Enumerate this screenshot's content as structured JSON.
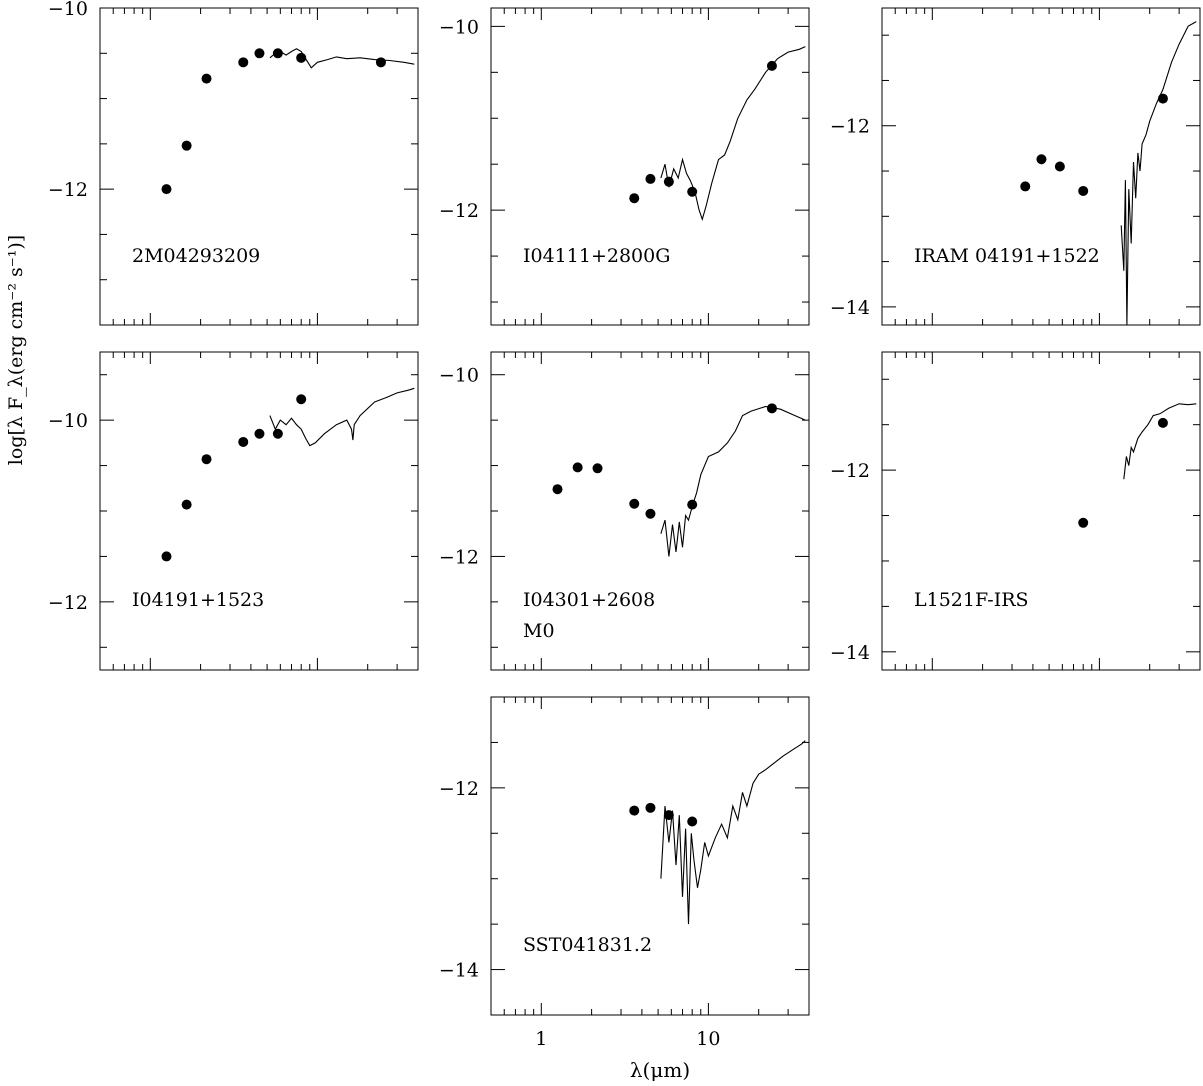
{
  "figure": {
    "ylabel": "log[λ F_λ(erg cm⁻² s⁻¹)]",
    "xlabel": "λ(μm)"
  },
  "chart_data": [
    {
      "type": "line",
      "name": "2M04293209",
      "labels": [
        "2M04293209"
      ],
      "xlim": [
        0.5,
        40
      ],
      "x_scale": "log",
      "ylim": [
        -13.5,
        -10
      ],
      "yticks": [
        -10,
        -12
      ],
      "xticklabels_shown": false,
      "points": [
        [
          1.25,
          -12.0
        ],
        [
          1.65,
          -11.52
        ],
        [
          2.17,
          -10.78
        ],
        [
          3.6,
          -10.6
        ],
        [
          4.5,
          -10.5
        ],
        [
          5.8,
          -10.5
        ],
        [
          8.0,
          -10.55
        ],
        [
          24.0,
          -10.6
        ]
      ],
      "spectrum": [
        [
          5.2,
          -10.55
        ],
        [
          5.6,
          -10.5
        ],
        [
          6.0,
          -10.48
        ],
        [
          6.5,
          -10.52
        ],
        [
          7.0,
          -10.48
        ],
        [
          7.5,
          -10.45
        ],
        [
          8.0,
          -10.48
        ],
        [
          8.5,
          -10.56
        ],
        [
          9.2,
          -10.66
        ],
        [
          10.0,
          -10.6
        ],
        [
          11.5,
          -10.57
        ],
        [
          13.0,
          -10.54
        ],
        [
          15.0,
          -10.56
        ],
        [
          18.0,
          -10.55
        ],
        [
          22.0,
          -10.57
        ],
        [
          27.0,
          -10.58
        ],
        [
          33.0,
          -10.6
        ],
        [
          38.0,
          -10.62
        ]
      ]
    },
    {
      "type": "line",
      "name": "I04111+2800G",
      "labels": [
        "I04111+2800G"
      ],
      "xlim": [
        0.5,
        40
      ],
      "x_scale": "log",
      "ylim": [
        -13.25,
        -9.8
      ],
      "yticks": [
        -10,
        -12
      ],
      "xticklabels_shown": false,
      "points": [
        [
          3.6,
          -11.87
        ],
        [
          4.5,
          -11.66
        ],
        [
          5.8,
          -11.69
        ],
        [
          8.0,
          -11.8
        ],
        [
          24.0,
          -10.43
        ]
      ],
      "spectrum": [
        [
          5.2,
          -11.65
        ],
        [
          5.5,
          -11.5
        ],
        [
          5.8,
          -11.75
        ],
        [
          6.2,
          -11.55
        ],
        [
          6.6,
          -11.65
        ],
        [
          7.0,
          -11.45
        ],
        [
          7.4,
          -11.6
        ],
        [
          7.8,
          -11.68
        ],
        [
          8.3,
          -11.8
        ],
        [
          8.8,
          -12.0
        ],
        [
          9.2,
          -12.1
        ],
        [
          9.7,
          -11.95
        ],
        [
          10.5,
          -11.7
        ],
        [
          11.5,
          -11.45
        ],
        [
          12.5,
          -11.4
        ],
        [
          13.5,
          -11.25
        ],
        [
          15.0,
          -11.0
        ],
        [
          17.0,
          -10.8
        ],
        [
          19.0,
          -10.68
        ],
        [
          22.0,
          -10.5
        ],
        [
          26.0,
          -10.35
        ],
        [
          30.0,
          -10.28
        ],
        [
          35.0,
          -10.25
        ],
        [
          38.0,
          -10.22
        ]
      ]
    },
    {
      "type": "line",
      "name": "IRAM 04191+1522",
      "labels": [
        "IRAM 04191+1522"
      ],
      "xlim": [
        0.5,
        40
      ],
      "x_scale": "log",
      "ylim": [
        -14.2,
        -10.7
      ],
      "yticks": [
        -12,
        -14
      ],
      "xticklabels_shown": false,
      "points": [
        [
          3.6,
          -12.67
        ],
        [
          4.5,
          -12.37
        ],
        [
          5.8,
          -12.45
        ],
        [
          8.0,
          -12.72
        ],
        [
          24.0,
          -11.7
        ]
      ],
      "spectrum": [
        [
          13.5,
          -13.1
        ],
        [
          14.0,
          -13.6
        ],
        [
          14.3,
          -12.6
        ],
        [
          14.6,
          -14.2
        ],
        [
          15.0,
          -12.7
        ],
        [
          15.5,
          -13.3
        ],
        [
          16.0,
          -12.4
        ],
        [
          16.5,
          -12.8
        ],
        [
          17.0,
          -12.3
        ],
        [
          17.5,
          -12.5
        ],
        [
          18.0,
          -12.2
        ],
        [
          19.0,
          -12.1
        ],
        [
          20.0,
          -11.95
        ],
        [
          22.0,
          -11.75
        ],
        [
          24.0,
          -11.6
        ],
        [
          27.0,
          -11.3
        ],
        [
          30.0,
          -11.1
        ],
        [
          34.0,
          -10.9
        ],
        [
          38.0,
          -10.85
        ]
      ]
    },
    {
      "type": "line",
      "name": "I04191+1523",
      "labels": [
        "I04191+1523"
      ],
      "xlim": [
        0.5,
        40
      ],
      "x_scale": "log",
      "ylim": [
        -12.75,
        -9.25
      ],
      "yticks": [
        -10,
        -12
      ],
      "xticklabels_shown": false,
      "points": [
        [
          1.25,
          -11.5
        ],
        [
          1.65,
          -10.93
        ],
        [
          2.17,
          -10.43
        ],
        [
          3.6,
          -10.24
        ],
        [
          4.5,
          -10.15
        ],
        [
          5.8,
          -10.15
        ],
        [
          8.0,
          -9.77
        ]
      ],
      "spectrum": [
        [
          5.2,
          -9.95
        ],
        [
          5.6,
          -10.1
        ],
        [
          6.0,
          -10.0
        ],
        [
          6.5,
          -10.05
        ],
        [
          7.0,
          -9.98
        ],
        [
          7.5,
          -10.05
        ],
        [
          8.0,
          -10.1
        ],
        [
          8.5,
          -10.2
        ],
        [
          9.0,
          -10.28
        ],
        [
          9.7,
          -10.25
        ],
        [
          11.0,
          -10.15
        ],
        [
          13.0,
          -10.05
        ],
        [
          15.0,
          -10.0
        ],
        [
          16.0,
          -10.1
        ],
        [
          16.3,
          -10.22
        ],
        [
          16.6,
          -10.05
        ],
        [
          18.0,
          -9.95
        ],
        [
          22.0,
          -9.8
        ],
        [
          26.0,
          -9.75
        ],
        [
          30.0,
          -9.7
        ],
        [
          35.0,
          -9.67
        ],
        [
          38.0,
          -9.65
        ]
      ]
    },
    {
      "type": "line",
      "name": "I04301+2608",
      "labels": [
        "I04301+2608",
        "M0"
      ],
      "xlim": [
        0.5,
        40
      ],
      "x_scale": "log",
      "ylim": [
        -13.25,
        -9.75
      ],
      "yticks": [
        -10,
        -12
      ],
      "xticklabels_shown": false,
      "points": [
        [
          1.25,
          -11.26
        ],
        [
          1.65,
          -11.02
        ],
        [
          2.17,
          -11.03
        ],
        [
          3.6,
          -11.42
        ],
        [
          4.5,
          -11.53
        ],
        [
          8.0,
          -11.43
        ],
        [
          24.0,
          -10.37
        ]
      ],
      "spectrum": [
        [
          5.2,
          -11.75
        ],
        [
          5.5,
          -11.6
        ],
        [
          5.8,
          -12.0
        ],
        [
          6.1,
          -11.65
        ],
        [
          6.4,
          -11.95
        ],
        [
          6.7,
          -11.62
        ],
        [
          7.0,
          -11.9
        ],
        [
          7.3,
          -11.55
        ],
        [
          7.6,
          -11.6
        ],
        [
          8.0,
          -11.45
        ],
        [
          8.5,
          -11.3
        ],
        [
          9.0,
          -11.1
        ],
        [
          10.0,
          -10.9
        ],
        [
          11.5,
          -10.85
        ],
        [
          13.0,
          -10.75
        ],
        [
          14.5,
          -10.62
        ],
        [
          16.0,
          -10.45
        ],
        [
          18.0,
          -10.4
        ],
        [
          22.0,
          -10.35
        ],
        [
          27.0,
          -10.38
        ],
        [
          33.0,
          -10.45
        ],
        [
          38.0,
          -10.5
        ]
      ]
    },
    {
      "type": "line",
      "name": "L1521F-IRS",
      "labels": [
        "L1521F-IRS"
      ],
      "xlim": [
        0.5,
        40
      ],
      "x_scale": "log",
      "ylim": [
        -14.2,
        -10.7
      ],
      "yticks": [
        -12,
        -14
      ],
      "xticklabels_shown": false,
      "points": [
        [
          8.0,
          -12.58
        ],
        [
          24.0,
          -11.48
        ]
      ],
      "spectrum": [
        [
          14.0,
          -12.1
        ],
        [
          14.5,
          -11.85
        ],
        [
          15.0,
          -11.95
        ],
        [
          15.5,
          -11.75
        ],
        [
          16.0,
          -11.8
        ],
        [
          17.0,
          -11.65
        ],
        [
          18.0,
          -11.58
        ],
        [
          19.5,
          -11.5
        ],
        [
          21.0,
          -11.4
        ],
        [
          23.0,
          -11.38
        ],
        [
          26.0,
          -11.32
        ],
        [
          30.0,
          -11.27
        ],
        [
          34.0,
          -11.28
        ],
        [
          38.0,
          -11.27
        ]
      ]
    },
    {
      "type": "line",
      "name": "SST041831.2",
      "labels": [
        "SST041831.2"
      ],
      "xlim": [
        0.5,
        40
      ],
      "x_scale": "log",
      "xticks": [
        1,
        10
      ],
      "ylim": [
        -14.5,
        -11
      ],
      "yticks": [
        -12,
        -14
      ],
      "xticklabels_shown": true,
      "points": [
        [
          3.6,
          -12.25
        ],
        [
          4.5,
          -12.22
        ],
        [
          5.8,
          -12.3
        ],
        [
          8.0,
          -12.37
        ]
      ],
      "spectrum": [
        [
          5.2,
          -13.0
        ],
        [
          5.5,
          -12.2
        ],
        [
          5.8,
          -12.6
        ],
        [
          6.1,
          -12.25
        ],
        [
          6.4,
          -12.85
        ],
        [
          6.7,
          -12.3
        ],
        [
          7.0,
          -13.2
        ],
        [
          7.3,
          -12.45
        ],
        [
          7.6,
          -13.5
        ],
        [
          7.9,
          -12.5
        ],
        [
          8.2,
          -12.8
        ],
        [
          8.6,
          -13.1
        ],
        [
          9.0,
          -12.9
        ],
        [
          9.5,
          -12.6
        ],
        [
          10.0,
          -12.75
        ],
        [
          11.0,
          -12.55
        ],
        [
          12.0,
          -12.4
        ],
        [
          13.0,
          -12.55
        ],
        [
          14.0,
          -12.2
        ],
        [
          15.0,
          -12.35
        ],
        [
          16.0,
          -12.05
        ],
        [
          17.0,
          -12.2
        ],
        [
          18.5,
          -11.95
        ],
        [
          20.0,
          -11.85
        ],
        [
          22.0,
          -11.8
        ],
        [
          25.0,
          -11.72
        ],
        [
          28.0,
          -11.65
        ],
        [
          32.0,
          -11.58
        ],
        [
          36.0,
          -11.52
        ],
        [
          38.0,
          -11.48
        ]
      ]
    }
  ]
}
